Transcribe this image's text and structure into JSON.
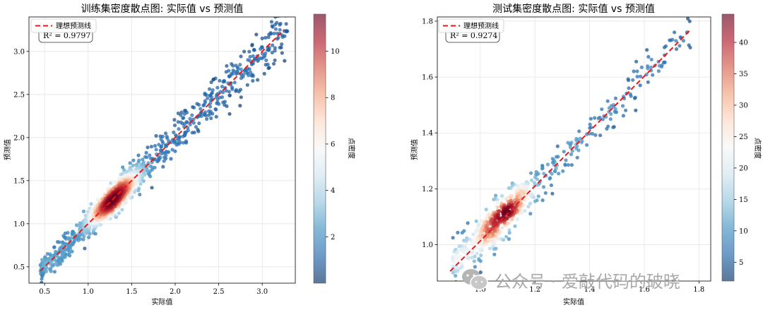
{
  "chart_data": [
    {
      "type": "scatter",
      "title": "训练集密度散点图: 实际值  vs  预测值",
      "xlabel": "实际值",
      "ylabel": "预测值",
      "xlim": [
        0.32,
        3.38
      ],
      "ylim": [
        0.31,
        3.4
      ],
      "xticks": [
        "0.5",
        "1.0",
        "1.5",
        "2.0",
        "2.5",
        "3.0"
      ],
      "xtick_values": [
        0.5,
        1.0,
        1.5,
        2.0,
        2.5,
        3.0
      ],
      "yticks": [
        "0.5",
        "1.0",
        "1.5",
        "2.0",
        "2.5",
        "3.0"
      ],
      "ytick_values": [
        0.5,
        1.0,
        1.5,
        2.0,
        2.5,
        3.0
      ],
      "grid": true,
      "legend": {
        "position": "top-left",
        "entries": [
          "理想预测线"
        ]
      },
      "annotation": "R² = 0.9797",
      "ideal_line": [
        [
          0.45,
          0.45
        ],
        [
          3.25,
          3.25
        ]
      ],
      "colorbar": {
        "label": "点密度",
        "range": [
          0,
          11.6
        ],
        "ticks": [
          "2",
          "4",
          "6",
          "8",
          "10"
        ],
        "tick_values": [
          2,
          4,
          6,
          8,
          10
        ],
        "colormap": "RdBu_r"
      },
      "cloud": {
        "n": 1600,
        "x_range": [
          0.45,
          3.3
        ],
        "x_peak": 1.3,
        "residual_sd": 0.07,
        "residual_sd_grows_with_x": 0.035,
        "dense_core": [
          1.15,
          1.55
        ]
      }
    },
    {
      "type": "scatter",
      "title": "测试集密度散点图: 实际值  vs  预测值",
      "xlabel": "实际值",
      "ylabel": "预测值",
      "xlim": [
        0.843,
        1.843
      ],
      "ylim": [
        0.87,
        1.815
      ],
      "xticks": [
        "1.0",
        "1.2",
        "1.4",
        "1.6",
        "1.8"
      ],
      "xtick_values": [
        1.0,
        1.2,
        1.4,
        1.6,
        1.8
      ],
      "yticks": [
        "1.0",
        "1.2",
        "1.4",
        "1.6",
        "1.8"
      ],
      "ytick_values": [
        1.0,
        1.2,
        1.4,
        1.6,
        1.8
      ],
      "grid": true,
      "legend": {
        "position": "top-left",
        "entries": [
          "理想预测线"
        ]
      },
      "annotation": "R² = 0.9274",
      "ideal_line": [
        [
          0.89,
          0.905
        ],
        [
          1.77,
          1.77
        ]
      ],
      "colorbar": {
        "label": "点密度",
        "range": [
          2,
          44.5
        ],
        "ticks": [
          "5",
          "10",
          "15",
          "20",
          "25",
          "30",
          "35",
          "40"
        ],
        "tick_values": [
          5,
          10,
          15,
          20,
          25,
          30,
          35,
          40
        ],
        "colormap": "RdBu_r"
      },
      "cloud": {
        "n": 700,
        "x_range": [
          0.9,
          1.77
        ],
        "x_peak": 1.08,
        "residual_sd": 0.035,
        "bias_at_low_x": 0.035,
        "dense_core": [
          1.0,
          1.2
        ]
      }
    }
  ],
  "watermark": "公众号 · 爱敲代码的破晓"
}
